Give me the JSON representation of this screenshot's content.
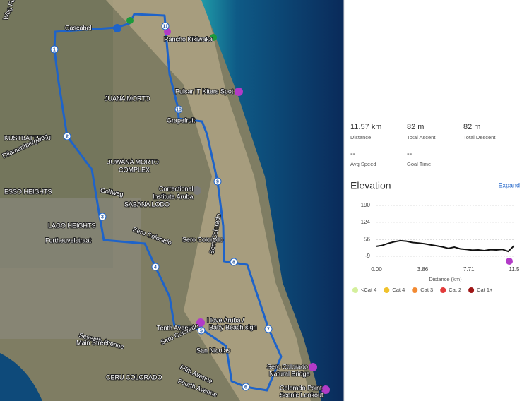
{
  "map": {
    "places": [
      "Weg Fontein",
      "Cascabel",
      "Rancho Kikiwaka",
      "Pulsar IT Kiters Spot",
      "JUANA MORTO",
      "Grapefruit",
      "KUSTBATTERIJ",
      "Dilamantbergweg",
      "JUWANA MORTO",
      "COMPLEX",
      "ESSO HEIGHTS",
      "Golfweg",
      "Correctional",
      "Institute Aruba",
      "SABANA LODO",
      "LAGO HEIGHTS",
      "Sero Colorado",
      "Sero Colorado",
      "Fortheuvelstraat",
      "Sero Colorado",
      "I love Aruba /",
      "Baby Beach sign",
      "Seventh Avenue",
      "Main Street",
      "Tenth Avenue",
      "Sero Colorado",
      "San Nicolas",
      "Fifth Avenue",
      "CERU COLORADO",
      "Fourth Avenue",
      "Sero Colorado",
      "Natural Bridge",
      "Colorado Point",
      "Scenic Lookout"
    ],
    "waypoints": [
      "1",
      "2",
      "3",
      "4",
      "5",
      "6",
      "7",
      "8",
      "9",
      "10",
      "11"
    ]
  },
  "stats": [
    {
      "value": "11.57 km",
      "label": "Distance"
    },
    {
      "value": "82 m",
      "label": "Total Ascent"
    },
    {
      "value": "82 m",
      "label": "Total Descent"
    },
    {
      "value": "--",
      "label": "Avg Speed"
    },
    {
      "value": "--",
      "label": "Goal Time"
    }
  ],
  "expand": "Expand",
  "chart_data": {
    "type": "line",
    "title": "Elevation",
    "x_label": "Distance (km)",
    "color": "#111111",
    "x": [
      0,
      0.5,
      1,
      1.5,
      2,
      2.5,
      3,
      3.5,
      4,
      4.5,
      5,
      5.5,
      6,
      6.5,
      7,
      7.5,
      8,
      8.5,
      9,
      9.5,
      10,
      10.5,
      11,
      11.5
    ],
    "values": [
      30,
      34,
      42,
      48,
      52,
      50,
      45,
      43,
      40,
      36,
      32,
      28,
      22,
      27,
      20,
      18,
      15,
      16,
      13,
      17,
      16,
      18,
      10,
      33
    ],
    "xlim": [
      0,
      11.5
    ],
    "xticks": [
      {
        "value": 0,
        "label": "0.00"
      },
      3.86,
      7.71,
      11.5
    ],
    "ylim": [
      -9,
      190
    ],
    "yticks": [
      190,
      124,
      56,
      -9
    ],
    "grid": true,
    "legend": [
      {
        "name": "<Cat 4",
        "color": "#d4ef9c"
      },
      {
        "name": "Cat 4",
        "color": "#f0c22c"
      },
      {
        "name": "Cat 3",
        "color": "#f28a32"
      },
      {
        "name": "Cat 2",
        "color": "#e23b3b"
      },
      {
        "name": "Cat 1+",
        "color": "#9e1515"
      }
    ]
  }
}
